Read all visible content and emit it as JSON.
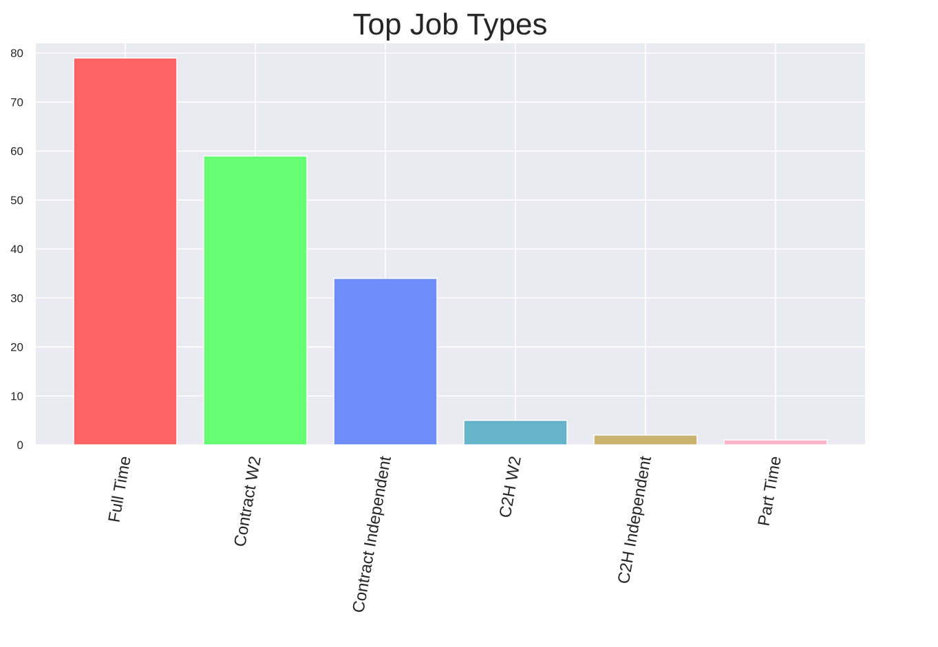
{
  "chart_data": {
    "type": "bar",
    "title": "Top Job Types",
    "xlabel": "",
    "ylabel": "",
    "categories": [
      "Full Time",
      "Contract W2",
      "Contract Independent",
      "C2H W2",
      "C2H Independent",
      "Part Time"
    ],
    "values": [
      79,
      59,
      34,
      5,
      2,
      1
    ],
    "colors": [
      "#ff6464",
      "#66ff74",
      "#6e8cfa",
      "#66b3cc",
      "#c8b46e",
      "#ffb4c8"
    ],
    "yticks": [
      0,
      10,
      20,
      30,
      40,
      50,
      60,
      70,
      80
    ],
    "ylim": [
      0,
      82
    ],
    "grid": true,
    "plot_background": "#eaeaf2",
    "xtick_rotation_degrees": 80
  }
}
